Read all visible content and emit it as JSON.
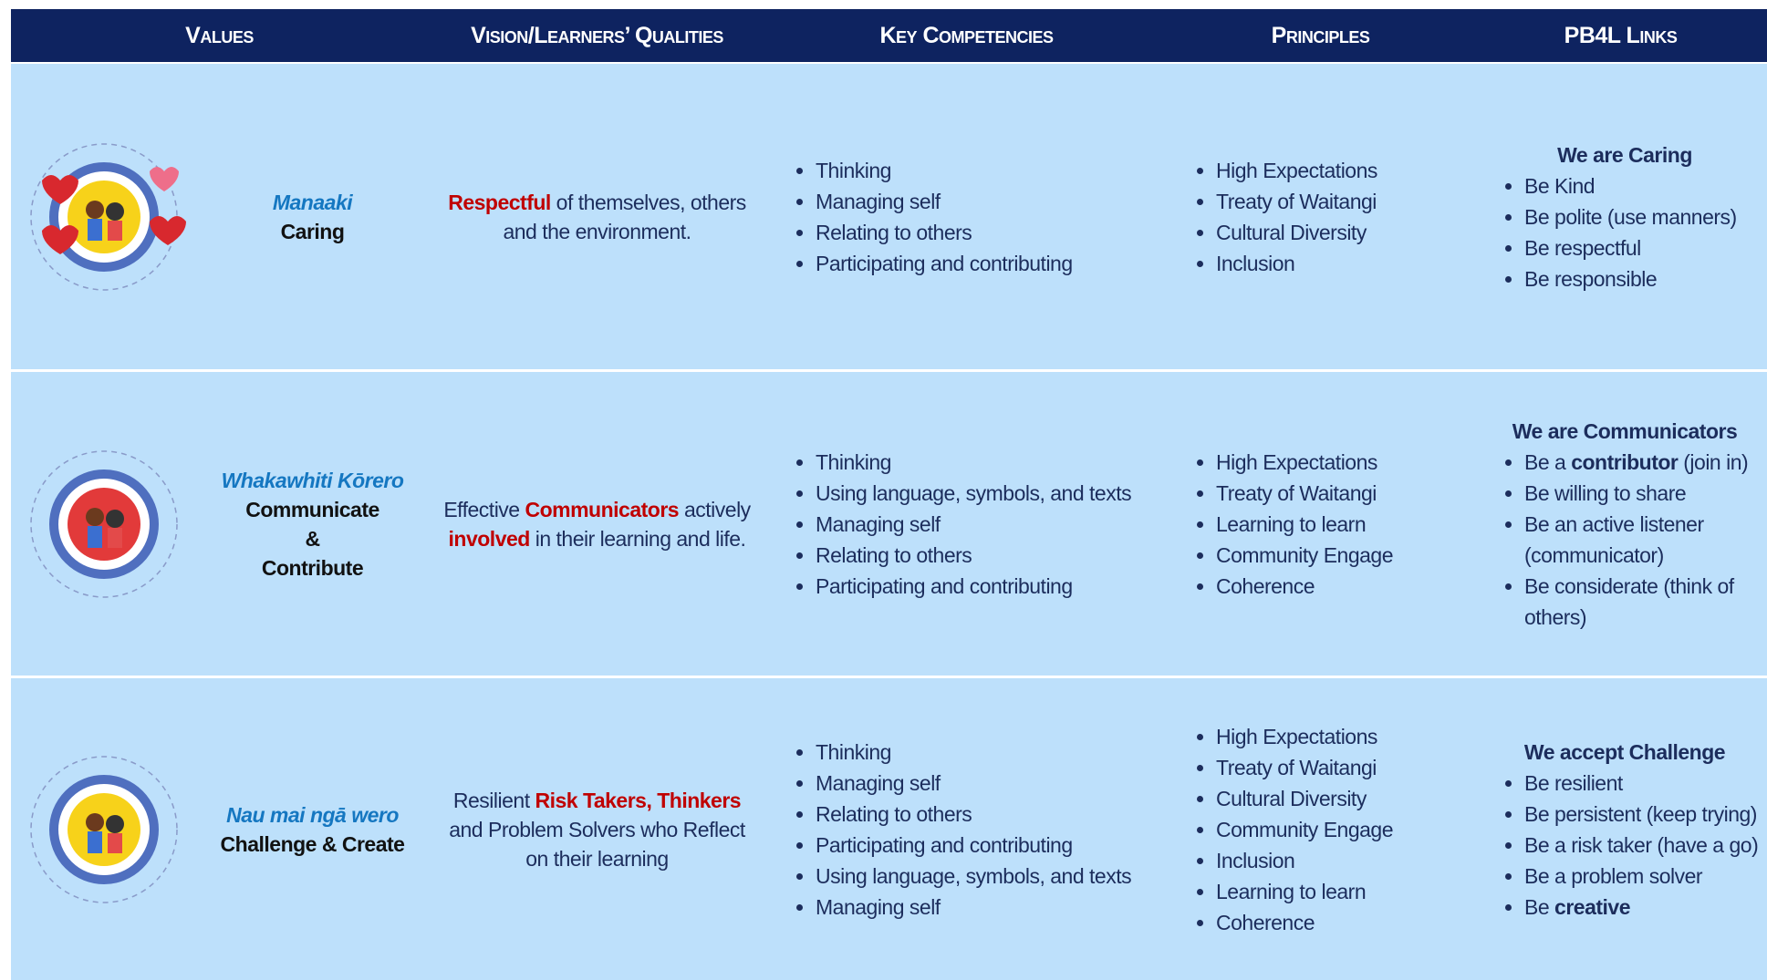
{
  "header": {
    "columns": [
      "Values",
      "Vision/Learners’ Qualities",
      "Key Competencies",
      "Principles",
      "PB4L Links"
    ]
  },
  "rows": [
    {
      "value": {
        "maori": "Manaaki",
        "english": [
          "Caring"
        ]
      },
      "vision": [
        {
          "text": "Respectful",
          "red": true
        },
        {
          "text": " of themselves, others and the environment."
        }
      ],
      "competencies": [
        "Thinking",
        "Managing self",
        "Relating to others",
        "Participating and contributing"
      ],
      "principles": [
        "High Expectations",
        "Treaty of Waitangi",
        "Cultural Diversity",
        "Inclusion"
      ],
      "pb4l": {
        "heading": "We are Caring",
        "items": [
          [
            {
              "text": "Be Kind"
            }
          ],
          [
            {
              "text": "Be  polite (use manners)"
            }
          ],
          [
            {
              "text": "Be respectful"
            }
          ],
          [
            {
              "text": "Be responsible"
            }
          ]
        ]
      }
    },
    {
      "value": {
        "maori": "Whakawhiti Kōrero",
        "english": [
          "Communicate",
          "&",
          "Contribute"
        ]
      },
      "vision": [
        {
          "text": "Effective "
        },
        {
          "text": "Communicators",
          "red": true
        },
        {
          "text": " actively "
        },
        {
          "text": "involved",
          "red": true
        },
        {
          "text": " in their learning and life."
        }
      ],
      "competencies": [
        "Thinking",
        "Using language, symbols, and texts",
        "Managing self",
        "Relating to others",
        "Participating and contributing"
      ],
      "principles": [
        "High Expectations",
        "Treaty of Waitangi",
        "Learning to learn",
        "Community Engage",
        "Coherence"
      ],
      "pb4l": {
        "heading": "We are Communicators",
        "items": [
          [
            {
              "text": "Be a "
            },
            {
              "text": "contributor",
              "bold": true
            },
            {
              "text": " (join in)"
            }
          ],
          [
            {
              "text": "Be willing to share"
            }
          ],
          [
            {
              "text": "Be an active listener (communicator)"
            }
          ],
          [
            {
              "text": "Be considerate (think of others)"
            }
          ]
        ]
      }
    },
    {
      "value": {
        "maori": "Nau mai ngā wero",
        "english": [
          "Challenge & Create"
        ]
      },
      "vision": [
        {
          "text": "Resilient "
        },
        {
          "text": "Risk Takers, Thinkers",
          "red": true
        },
        {
          "text": " and Problem Solvers who Reflect on their learning"
        }
      ],
      "competencies": [
        "Thinking",
        "Managing self",
        "Relating to others",
        "Participating and contributing",
        "Using language, symbols, and texts",
        "Managing self"
      ],
      "principles": [
        "High Expectations",
        "Treaty of Waitangi",
        "Cultural Diversity",
        "Community Engage",
        "Inclusion",
        "Learning to learn",
        "Coherence"
      ],
      "pb4l": {
        "heading": "We accept Challenge",
        "items": [
          [
            {
              "text": "Be resilient"
            }
          ],
          [
            {
              "text": "Be persistent (keep trying)"
            }
          ],
          [
            {
              "text": "Be a risk taker (have a go)"
            }
          ],
          [
            {
              "text": "Be a problem solver"
            }
          ],
          [
            {
              "text": "Be "
            },
            {
              "text": "creative",
              "bold": true
            }
          ]
        ]
      }
    }
  ]
}
